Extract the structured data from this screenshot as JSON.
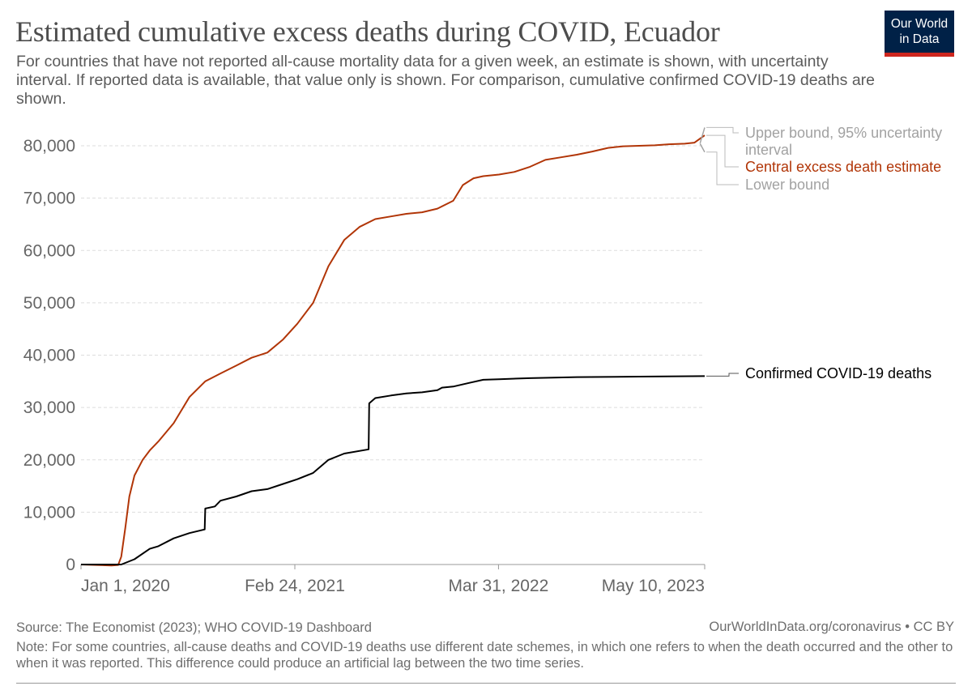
{
  "header": {
    "title": "Estimated cumulative excess deaths during COVID, Ecuador",
    "subtitle": "For countries that have not reported all-cause mortality data for a given week, an estimate is shown, with uncertainty interval. If reported data is available, that value only is shown. For comparison, cumulative confirmed COVID-19 deaths are shown."
  },
  "logo": {
    "line1": "Our World",
    "line2": "in Data"
  },
  "footer": {
    "source": "Source: The Economist (2023); WHO COVID-19 Dashboard",
    "credit": "OurWorldInData.org/coronavirus • CC BY",
    "note": "Note: For some countries, all-cause deaths and COVID-19 deaths use different date schemes, in which one refers to when the death occurred and the other to when it was reported. This difference could produce an artificial lag between the two time series."
  },
  "colors": {
    "excess": "#b13507",
    "confirmed": "#000000",
    "bounds": "#a2a2a2",
    "grid": "#dddddd"
  },
  "chart_data": {
    "type": "line",
    "title": "Estimated cumulative excess deaths during COVID, Ecuador",
    "ylim": [
      0,
      80000
    ],
    "yticks": [
      0,
      10000,
      20000,
      30000,
      40000,
      50000,
      60000,
      70000,
      80000
    ],
    "ytick_labels": [
      "0",
      "10,000",
      "20,000",
      "30,000",
      "40,000",
      "50,000",
      "60,000",
      "70,000",
      "80,000"
    ],
    "xlim": [
      "2020-01-01",
      "2023-05-10"
    ],
    "xticks": [
      "2020-01-01",
      "2021-02-24",
      "2022-03-31",
      "2023-05-10"
    ],
    "xtick_labels": [
      "Jan 1, 2020",
      "Feb 24, 2021",
      "Mar 31, 2022",
      "May 10, 2023"
    ],
    "grid": "horizontal dashed",
    "series": [
      {
        "name": "Central excess death estimate",
        "label_key": "excess",
        "x": [
          "2020-01-01",
          "2020-02-01",
          "2020-03-01",
          "2020-03-14",
          "2020-03-20",
          "2020-03-28",
          "2020-04-05",
          "2020-04-15",
          "2020-05-01",
          "2020-05-15",
          "2020-06-01",
          "2020-07-01",
          "2020-08-01",
          "2020-09-01",
          "2020-10-01",
          "2020-11-01",
          "2020-12-01",
          "2021-01-01",
          "2021-02-01",
          "2021-03-01",
          "2021-04-01",
          "2021-05-01",
          "2021-06-01",
          "2021-07-01",
          "2021-08-01",
          "2021-09-01",
          "2021-10-01",
          "2021-11-01",
          "2021-12-01",
          "2022-01-01",
          "2022-01-20",
          "2022-02-10",
          "2022-03-01",
          "2022-04-01",
          "2022-05-01",
          "2022-06-01",
          "2022-07-01",
          "2022-08-01",
          "2022-09-01",
          "2022-10-01",
          "2022-11-01",
          "2022-12-01",
          "2023-01-01",
          "2023-02-01",
          "2023-03-01",
          "2023-04-01",
          "2023-04-20",
          "2023-05-10"
        ],
        "y": [
          0,
          -100,
          -200,
          -100,
          1500,
          7000,
          13000,
          17000,
          20000,
          21800,
          23500,
          27000,
          32000,
          35000,
          36500,
          38000,
          39500,
          40500,
          43000,
          46000,
          50000,
          57000,
          62000,
          64500,
          66000,
          66500,
          67000,
          67300,
          68000,
          69500,
          72500,
          73800,
          74200,
          74500,
          75000,
          76000,
          77300,
          77800,
          78300,
          78900,
          79600,
          79900,
          80000,
          80100,
          80300,
          80400,
          80600,
          82000
        ]
      },
      {
        "name": "Confirmed COVID-19 deaths",
        "label_key": "confirmed",
        "x": [
          "2020-01-01",
          "2020-03-20",
          "2020-04-15",
          "2020-05-15",
          "2020-06-01",
          "2020-07-01",
          "2020-08-01",
          "2020-08-31",
          "2020-09-01",
          "2020-09-20",
          "2020-10-01",
          "2020-11-01",
          "2020-12-01",
          "2021-01-01",
          "2021-02-01",
          "2021-03-01",
          "2021-04-01",
          "2021-05-01",
          "2021-06-01",
          "2021-07-19",
          "2021-07-20",
          "2021-08-01",
          "2021-09-01",
          "2021-10-01",
          "2021-11-01",
          "2021-12-01",
          "2021-12-10",
          "2022-01-01",
          "2022-02-01",
          "2022-03-01",
          "2022-04-01",
          "2022-06-01",
          "2022-09-01",
          "2023-01-01",
          "2023-05-10"
        ],
        "y": [
          0,
          0,
          1000,
          3000,
          3500,
          5000,
          6000,
          6700,
          10700,
          11100,
          12200,
          13000,
          14000,
          14400,
          15400,
          16300,
          17500,
          20000,
          21200,
          22000,
          30800,
          31800,
          32300,
          32700,
          32900,
          33300,
          33800,
          34000,
          34700,
          35300,
          35400,
          35600,
          35800,
          35900,
          36000
        ]
      },
      {
        "name": "Upper bound, 95% uncertainty interval",
        "label_key": "upper",
        "x": [
          "2023-05-01",
          "2023-05-10"
        ],
        "y": [
          80500,
          83500
        ]
      },
      {
        "name": "Lower bound",
        "label_key": "lower",
        "x": [
          "2023-05-01",
          "2023-05-10"
        ],
        "y": [
          80400,
          78800
        ]
      }
    ],
    "labels": {
      "upper": "Upper bound, 95% uncertainty interval",
      "excess": "Central excess death estimate",
      "lower": "Lower bound",
      "confirmed": "Confirmed COVID-19 deaths"
    }
  }
}
